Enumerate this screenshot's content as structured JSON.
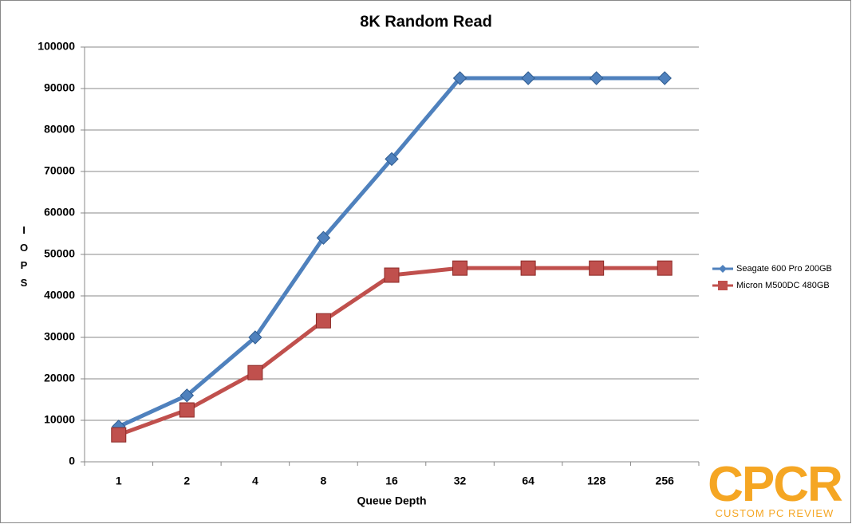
{
  "chart_data": {
    "type": "line",
    "title": "8K Random Read",
    "x_label": "Queue Depth",
    "y_label": "IOPS",
    "categories": [
      "1",
      "2",
      "4",
      "8",
      "16",
      "32",
      "64",
      "128",
      "256"
    ],
    "series": [
      {
        "name": "Seagate 600 Pro 200GB",
        "color": "#4f81bd",
        "marker": "diamond",
        "values": [
          8500,
          16000,
          30000,
          54000,
          73000,
          92500,
          92500,
          92500,
          92500
        ]
      },
      {
        "name": "Micron M500DC 480GB",
        "color": "#c0504d",
        "marker": "square",
        "values": [
          6500,
          12500,
          21500,
          34000,
          45000,
          46700,
          46700,
          46700,
          46700
        ]
      }
    ],
    "ylim": [
      0,
      100000
    ],
    "yticks": [
      0,
      10000,
      20000,
      30000,
      40000,
      50000,
      60000,
      70000,
      80000,
      90000,
      100000
    ],
    "grid": true,
    "legend": "right"
  },
  "watermark": {
    "logo": "CPCR",
    "text": "CUSTOM PC REVIEW"
  }
}
